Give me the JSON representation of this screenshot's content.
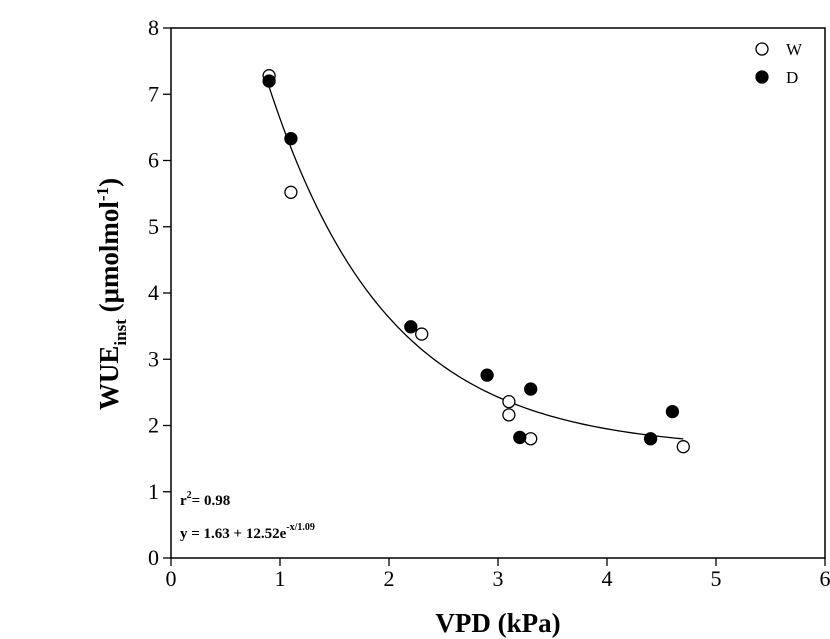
{
  "chart_data": {
    "type": "scatter",
    "xlabel": "VPD (kPa)",
    "ylabel": {
      "main": "WUE",
      "subscript": "inst",
      "unit_prefix": " (μmolmol",
      "unit_superscript": "-1",
      "unit_suffix": ")"
    },
    "xlim": [
      0,
      6
    ],
    "ylim": [
      0,
      8
    ],
    "x_ticks": [
      0,
      1,
      2,
      3,
      4,
      5,
      6
    ],
    "y_ticks": [
      0,
      1,
      2,
      3,
      4,
      5,
      6,
      7,
      8
    ],
    "grid": false,
    "legend_position": "top-right",
    "series": [
      {
        "name": "W",
        "marker": "open-circle",
        "color": "#000000",
        "points": [
          {
            "x": 0.9,
            "y": 7.28
          },
          {
            "x": 1.1,
            "y": 5.52
          },
          {
            "x": 2.3,
            "y": 3.38
          },
          {
            "x": 3.1,
            "y": 2.36
          },
          {
            "x": 3.1,
            "y": 2.16
          },
          {
            "x": 3.3,
            "y": 1.8
          },
          {
            "x": 4.7,
            "y": 1.68
          }
        ]
      },
      {
        "name": "D",
        "marker": "filled-circle",
        "color": "#000000",
        "points": [
          {
            "x": 0.9,
            "y": 7.2
          },
          {
            "x": 1.1,
            "y": 6.33
          },
          {
            "x": 2.2,
            "y": 3.49
          },
          {
            "x": 2.9,
            "y": 2.76
          },
          {
            "x": 3.2,
            "y": 1.82
          },
          {
            "x": 3.3,
            "y": 2.55
          },
          {
            "x": 4.4,
            "y": 1.8
          },
          {
            "x": 4.6,
            "y": 2.21
          }
        ]
      }
    ],
    "fit": {
      "a": 1.63,
      "b": 12.52,
      "c": 1.09,
      "x_range": [
        0.9,
        4.7
      ]
    },
    "annotations": {
      "r2_prefix": "r",
      "r2_sup": "2",
      "r2_value": "= 0.98",
      "eq_prefix": "y = 1.63 + 12.52e",
      "eq_sup": "-x/1.09"
    }
  }
}
